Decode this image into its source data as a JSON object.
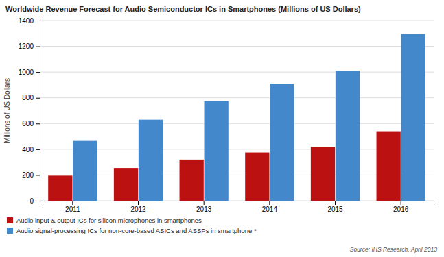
{
  "chart_data": {
    "type": "bar",
    "title": "Worldwide Revenue Forecast for Audio Semiconductor ICs in Smartphones (Millions of US Dollars)",
    "ylabel": "Millions of US Dollars",
    "categories": [
      "2011",
      "2012",
      "2013",
      "2014",
      "2015",
      "2016"
    ],
    "series": [
      {
        "name": "Audio input & output ICs for silicon microphones in smartphones",
        "color": "#bb1111",
        "values": [
          195,
          255,
          320,
          375,
          420,
          540
        ]
      },
      {
        "name": "Audio signal-processing ICs for non-core-based ASICs and ASSPs in smartphone *",
        "color": "#4488cc",
        "values": [
          465,
          630,
          775,
          910,
          1010,
          1295
        ]
      }
    ],
    "ylim": [
      0,
      1400
    ],
    "yticks": [
      0,
      200,
      400,
      600,
      800,
      1000,
      1200,
      1400
    ],
    "grid": true,
    "legend": "lower left",
    "annotations": [
      "Source: IHS Research, April 2013"
    ]
  }
}
